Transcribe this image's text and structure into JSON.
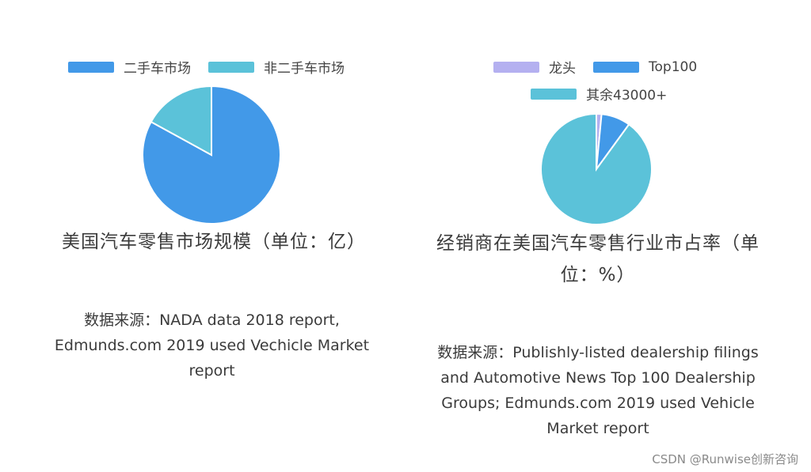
{
  "colors": {
    "blue": "#4299e8",
    "cyan": "#5bc2d9",
    "lavender": "#b4b0f0"
  },
  "chart_data": [
    {
      "type": "pie",
      "title": "美国汽车零售市场规模（单位：亿）",
      "legend": "top",
      "series": [
        {
          "name": "二手车市场",
          "value": 83,
          "color": "#4299e8"
        },
        {
          "name": "非二手车市场",
          "value": 17,
          "color": "#5bc2d9"
        }
      ],
      "source": "数据来源：NADA data 2018 report, Edmunds.com 2019 used Vechicle Market report"
    },
    {
      "type": "pie",
      "title": "经销商在美国汽车零售行业市占率（单位：%）",
      "legend": "top",
      "series": [
        {
          "name": "龙头",
          "value": 1.5,
          "color": "#b4b0f0"
        },
        {
          "name": "Top100",
          "value": 8.5,
          "color": "#4299e8"
        },
        {
          "name": "其余43000+",
          "value": 90,
          "color": "#5bc2d9"
        }
      ],
      "source": "数据来源：Publishly-listed dealership filings and Automotive News Top 100 Dealership Groups; Edmunds.com 2019 used Vehicle Market report"
    }
  ],
  "watermark": "CSDN @Runwise创新咨询"
}
